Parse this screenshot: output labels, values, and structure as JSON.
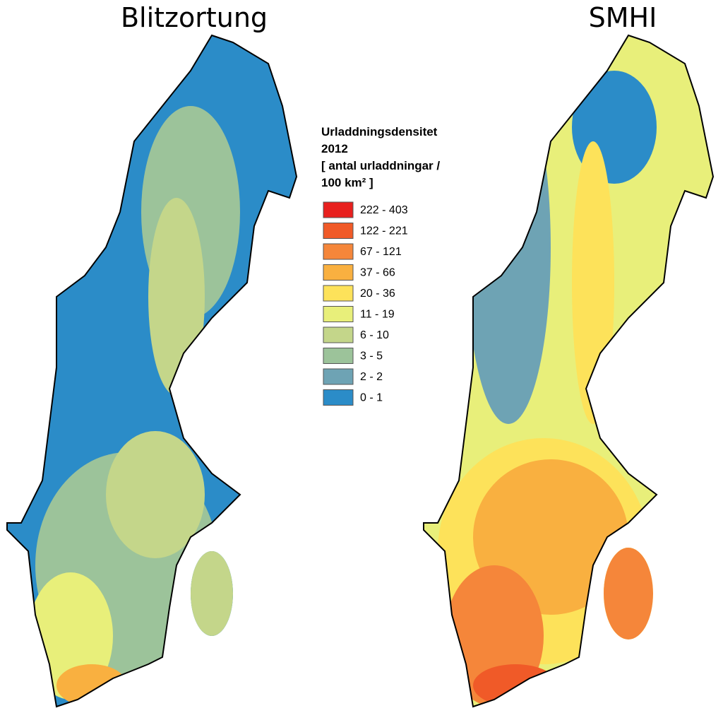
{
  "maps": [
    {
      "title": "Blitzortung"
    },
    {
      "title": "SMHI"
    }
  ],
  "legend": {
    "title_lines": [
      "Urladdningsdensitet",
      "2012",
      "[ antal urladdningar /",
      "100 km² ]"
    ],
    "items": [
      {
        "label": "222 - 403",
        "color": "#e8201e"
      },
      {
        "label": "122 - 221",
        "color": "#f05a28"
      },
      {
        "label": "67 - 121",
        "color": "#f5863a"
      },
      {
        "label": "37 - 66",
        "color": "#f9b040"
      },
      {
        "label": "20 - 36",
        "color": "#fde25a"
      },
      {
        "label": "11 - 19",
        "color": "#e8ef7a"
      },
      {
        "label": "6 - 10",
        "color": "#c4d68a"
      },
      {
        "label": "3 - 5",
        "color": "#9cc39a"
      },
      {
        "label": "2 - 2",
        "color": "#6ea3b4"
      },
      {
        "label": "0 - 1",
        "color": "#2b8cc8"
      }
    ]
  }
}
